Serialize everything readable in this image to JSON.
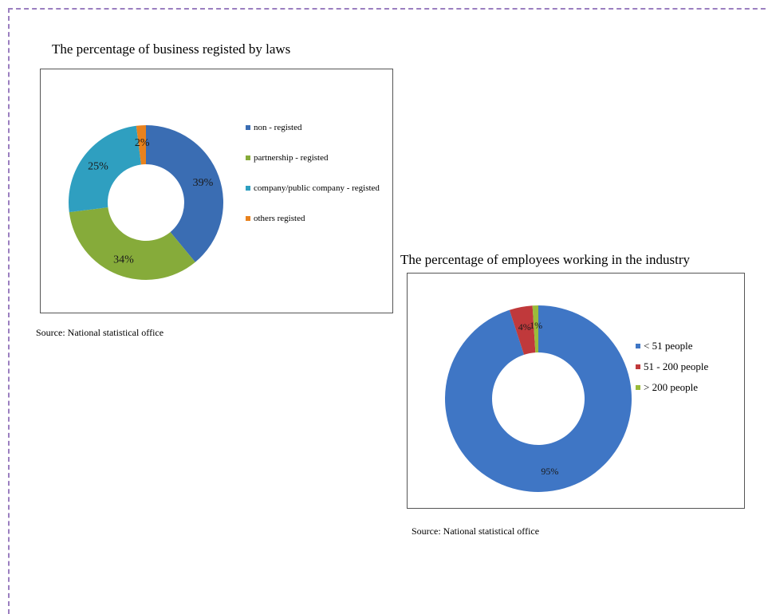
{
  "chart_data": [
    {
      "type": "pie",
      "title": "The percentage of business registed by laws",
      "source": "Source: National statistical office",
      "series": [
        {
          "name": "non - registed",
          "value": 39,
          "label": "39%",
          "color": "#3a6db3"
        },
        {
          "name": "partnership - registed",
          "value": 34,
          "label": "34%",
          "color": "#86ab3a"
        },
        {
          "name": "company/public company - registed",
          "value": 25,
          "label": "25%",
          "color": "#2f9fc0"
        },
        {
          "name": "others registed",
          "value": 2,
          "label": "2%",
          "color": "#e8821e"
        }
      ],
      "legend_position": "right"
    },
    {
      "type": "pie",
      "title": "The percentage of employees working in the industry",
      "source": "Source: National statistical office",
      "series": [
        {
          "name": "< 51 people",
          "value": 95,
          "label": "95%",
          "color": "#3f76c5"
        },
        {
          "name": "51 - 200 people",
          "value": 4,
          "label": "4%",
          "color": "#c0393b"
        },
        {
          "name": "> 200 people",
          "value": 1,
          "label": "1%",
          "color": "#9bbb3a"
        }
      ],
      "legend_position": "right"
    }
  ]
}
